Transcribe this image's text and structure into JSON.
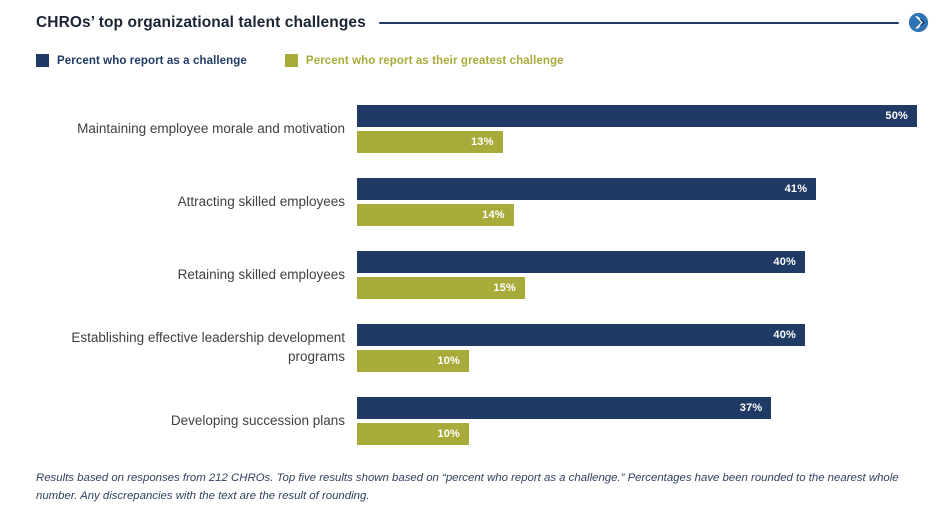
{
  "header": {
    "title": "CHROs’ top organizational talent challenges"
  },
  "legend": {
    "items": [
      {
        "label": "Percent who report as a challenge",
        "color": "#1f3a64"
      },
      {
        "label": "Percent who report as their greatest challenge",
        "color": "#a8aa39"
      }
    ]
  },
  "chart_data": {
    "type": "bar",
    "orientation": "horizontal",
    "title": "CHROs’ top organizational talent challenges",
    "categories": [
      "Maintaining employee morale and motivation",
      "Attracting skilled employees",
      "Retaining skilled employees",
      "Establishing effective leadership development programs",
      "Developing succession plans"
    ],
    "series": [
      {
        "name": "Percent who report as a challenge",
        "color": "#1f3a64",
        "values": [
          50,
          41,
          40,
          40,
          37
        ]
      },
      {
        "name": "Percent who report as their greatest challenge",
        "color": "#a8aa39",
        "values": [
          13,
          14,
          15,
          10,
          10
        ]
      }
    ],
    "value_suffix": "%",
    "xlim": [
      0,
      50
    ],
    "data_labels": "inside-end",
    "legend_position": "top-left",
    "grid": false
  },
  "footnote": "Results based on responses from 212 CHROs. Top five results shown based on “percent who report as a challenge.” Percentages have been rounded to the nearest whole number. Any discrepancies with the text are the result of rounding."
}
